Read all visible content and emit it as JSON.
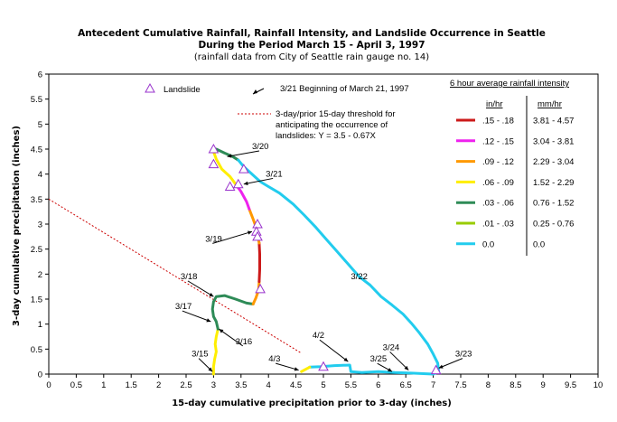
{
  "chart_data": {
    "type": "line",
    "title": "Antecedent Cumulative Rainfall, Rainfall Intensity, and Landslide Occurrence in Seattle",
    "subtitle": "During the Period March 15 - April 3, 1997",
    "subtitle2": "(rainfall data from City of Seattle rain gauge no. 14)",
    "xlabel": "15-day cumulative precipitation prior to 3-day (inches)",
    "ylabel": "3-day cumulative precipitation (inches)",
    "xlim": [
      0,
      10
    ],
    "ylim": [
      0,
      6
    ],
    "xticks": [
      "0",
      "0.5",
      "1",
      "1.5",
      "2",
      "2.5",
      "3",
      "3.5",
      "4",
      "4.5",
      "5",
      "5.5",
      "6",
      "6.5",
      "7",
      "7.5",
      "8",
      "8.5",
      "9",
      "9.5",
      "10"
    ],
    "yticks": [
      "0",
      "0.5",
      "1",
      "1.5",
      "2",
      "2.5",
      "3",
      "3.5",
      "4",
      "4.5",
      "5",
      "5.5",
      "6"
    ],
    "grid": false,
    "legend": {
      "title": "6 hour average rainfall intensity",
      "col1_header": "in/hr",
      "col2_header": "mm/hr",
      "entries": [
        {
          "in": ".15 - .18",
          "mm": "3.81 - 4.57",
          "color": "#cc1a1a"
        },
        {
          "in": ".12 - .15",
          "mm": "3.04 - 3.81",
          "color": "#ee22ee"
        },
        {
          "in": ".09 - .12",
          "mm": "2.29 - 3.04",
          "color": "#ff9900"
        },
        {
          "in": ".06 - .09",
          "mm": "1.52 - 2.29",
          "color": "#ffee00"
        },
        {
          "in": ".03 - .06",
          "mm": "0.76 - 1.52",
          "color": "#2e8b57"
        },
        {
          "in": ".01 - .03",
          "mm": "0.25 - 0.76",
          "color": "#99cc00"
        },
        {
          "in": "0.0",
          "mm": "0.0",
          "color": "#22ccee"
        }
      ]
    },
    "landslide_label": "Landslide",
    "date_note": "3/21 Beginning of March 21, 1997",
    "threshold_label": "3-day/prior 15-day threshold for anticipating the occurrence of landslides: Y = 3.5 - 0.67X",
    "threshold": {
      "intercept": 3.5,
      "slope": -0.67,
      "color": "#cc0000"
    },
    "series": [
      {
        "color": "#ffee00",
        "points": [
          [
            3.0,
            0.0
          ],
          [
            3.0,
            0.15
          ],
          [
            3.02,
            0.3
          ],
          [
            3.05,
            0.45
          ],
          [
            3.03,
            0.6
          ],
          [
            3.05,
            0.75
          ],
          [
            3.08,
            0.9
          ]
        ]
      },
      {
        "color": "#2e8b57",
        "points": [
          [
            3.08,
            0.9
          ],
          [
            3.05,
            1.05
          ],
          [
            3.0,
            1.15
          ],
          [
            2.98,
            1.3
          ],
          [
            3.0,
            1.45
          ],
          [
            3.05,
            1.55
          ],
          [
            3.2,
            1.57
          ],
          [
            3.4,
            1.5
          ],
          [
            3.6,
            1.42
          ],
          [
            3.72,
            1.4
          ]
        ]
      },
      {
        "color": "#ff9900",
        "points": [
          [
            3.72,
            1.4
          ],
          [
            3.77,
            1.52
          ],
          [
            3.82,
            1.68
          ],
          [
            3.83,
            1.85
          ]
        ]
      },
      {
        "color": "#cc1a1a",
        "points": [
          [
            3.83,
            1.85
          ],
          [
            3.84,
            2.1
          ],
          [
            3.84,
            2.4
          ],
          [
            3.83,
            2.62
          ]
        ]
      },
      {
        "color": "#ff9900",
        "points": [
          [
            3.83,
            2.62
          ],
          [
            3.8,
            2.8
          ],
          [
            3.78,
            2.92
          ],
          [
            3.72,
            3.1
          ],
          [
            3.65,
            3.3
          ]
        ]
      },
      {
        "color": "#ee22ee",
        "points": [
          [
            3.65,
            3.3
          ],
          [
            3.6,
            3.45
          ],
          [
            3.5,
            3.65
          ],
          [
            3.4,
            3.8
          ]
        ]
      },
      {
        "color": "#ffee00",
        "points": [
          [
            3.4,
            3.8
          ],
          [
            3.3,
            3.95
          ],
          [
            3.15,
            4.1
          ],
          [
            3.05,
            4.3
          ],
          [
            3.0,
            4.45
          ]
        ]
      },
      {
        "color": "#2e8b57",
        "points": [
          [
            3.0,
            4.45
          ],
          [
            3.05,
            4.5
          ],
          [
            3.2,
            4.42
          ],
          [
            3.35,
            4.35
          ],
          [
            3.45,
            4.28
          ]
        ]
      },
      {
        "color": "#22ccee",
        "points": [
          [
            3.45,
            4.28
          ],
          [
            3.55,
            4.15
          ],
          [
            3.7,
            4.0
          ],
          [
            3.85,
            3.85
          ],
          [
            4.0,
            3.75
          ],
          [
            4.2,
            3.62
          ],
          [
            4.45,
            3.4
          ],
          [
            4.65,
            3.18
          ],
          [
            4.85,
            2.95
          ],
          [
            5.05,
            2.7
          ],
          [
            5.25,
            2.45
          ],
          [
            5.45,
            2.2
          ],
          [
            5.65,
            1.95
          ],
          [
            5.85,
            1.78
          ],
          [
            6.05,
            1.55
          ],
          [
            6.25,
            1.38
          ],
          [
            6.45,
            1.2
          ],
          [
            6.6,
            1.02
          ],
          [
            6.75,
            0.82
          ],
          [
            6.9,
            0.6
          ],
          [
            7.0,
            0.4
          ],
          [
            7.08,
            0.22
          ],
          [
            7.1,
            0.05
          ],
          [
            7.0,
            0.0
          ],
          [
            6.6,
            0.02
          ],
          [
            6.3,
            0.03
          ],
          [
            6.0,
            0.05
          ],
          [
            5.7,
            0.03
          ],
          [
            5.5,
            0.05
          ],
          [
            5.48,
            0.18
          ],
          [
            5.2,
            0.17
          ],
          [
            4.95,
            0.15
          ],
          [
            4.75,
            0.14
          ]
        ]
      },
      {
        "color": "#ffee00",
        "points": [
          [
            4.75,
            0.14
          ],
          [
            4.6,
            0.05
          ]
        ]
      }
    ],
    "landslides": [
      [
        3.0,
        4.5
      ],
      [
        3.0,
        4.2
      ],
      [
        3.55,
        4.1
      ],
      [
        3.45,
        3.8
      ],
      [
        3.3,
        3.75
      ],
      [
        3.8,
        3.0
      ],
      [
        3.78,
        2.85
      ],
      [
        3.8,
        2.75
      ],
      [
        3.85,
        1.7
      ],
      [
        5.0,
        0.15
      ],
      [
        7.05,
        0.08
      ]
    ],
    "annotations": [
      {
        "text": "3/15",
        "x": 2.6,
        "y": 0.35,
        "ax": 2.98,
        "ay": 0.05
      },
      {
        "text": "3/16",
        "x": 3.4,
        "y": 0.6,
        "ax": 3.1,
        "ay": 0.9
      },
      {
        "text": "3/17",
        "x": 2.3,
        "y": 1.3,
        "ax": 2.95,
        "ay": 1.05
      },
      {
        "text": "3/18",
        "x": 2.4,
        "y": 1.9,
        "ax": 3.0,
        "ay": 1.55
      },
      {
        "text": "3/19",
        "x": 2.85,
        "y": 2.65,
        "ax": 3.7,
        "ay": 2.85
      },
      {
        "text": "3/20",
        "x": 3.7,
        "y": 4.5,
        "ax": 3.25,
        "ay": 4.35
      },
      {
        "text": "3/21",
        "x": 3.95,
        "y": 3.95,
        "ax": 3.55,
        "ay": 3.8
      },
      {
        "text": "3/22",
        "x": 5.5,
        "y": 1.9,
        "ax": null,
        "ay": null
      },
      {
        "text": "3/23",
        "x": 7.4,
        "y": 0.35,
        "ax": 7.1,
        "ay": 0.12
      },
      {
        "text": "3/24",
        "x": 6.08,
        "y": 0.48,
        "ax": 6.55,
        "ay": 0.08
      },
      {
        "text": "3/25",
        "x": 5.85,
        "y": 0.25,
        "ax": 6.25,
        "ay": 0.05
      },
      {
        "text": "4/2",
        "x": 4.8,
        "y": 0.72,
        "ax": 5.45,
        "ay": 0.25
      },
      {
        "text": "4/3",
        "x": 4.0,
        "y": 0.25,
        "ax": 4.55,
        "ay": 0.08
      }
    ]
  }
}
